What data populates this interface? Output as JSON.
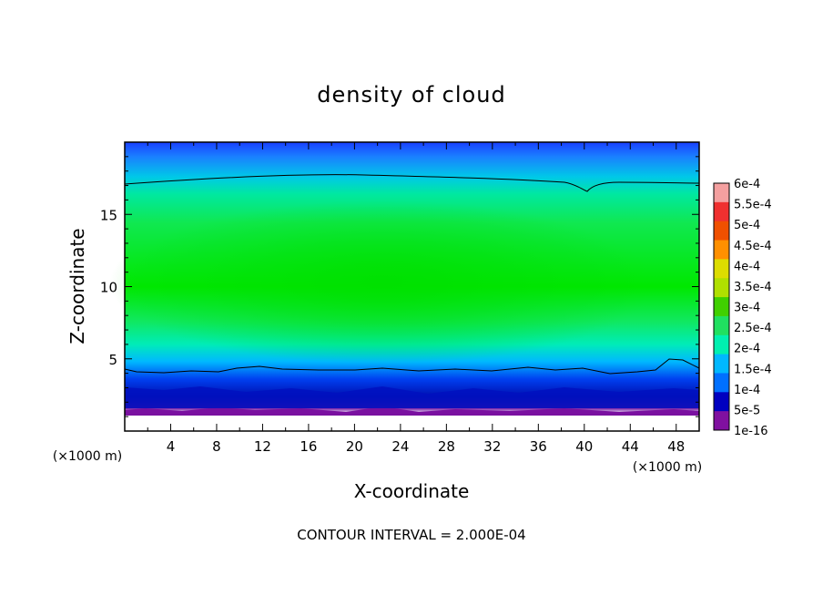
{
  "chart_data": {
    "type": "heatmap",
    "title": "density of cloud",
    "xlabel": "X-coordinate",
    "ylabel": "Z-coordinate",
    "x_unit": "(×1000 m)",
    "z_unit": "(×1000 m)",
    "x_ticks": [
      4,
      8,
      12,
      16,
      20,
      24,
      28,
      32,
      36,
      40,
      44,
      48
    ],
    "z_ticks": [
      5,
      10,
      15
    ],
    "xlim": [
      0,
      50
    ],
    "zlim": [
      0,
      20
    ],
    "colorbar": {
      "labels": [
        "6e-4",
        "5.5e-4",
        "5e-4",
        "4.5e-4",
        "4e-4",
        "3.5e-4",
        "3e-4",
        "2.5e-4",
        "2e-4",
        "1.5e-4",
        "1e-4",
        "5e-5",
        "1e-16"
      ],
      "colors": [
        "#f4a0a0",
        "#f03030",
        "#f05000",
        "#ff9000",
        "#dddd00",
        "#b0e000",
        "#40d000",
        "#20e060",
        "#00f0b0",
        "#00b8ff",
        "#0070ff",
        "#0000c0",
        "#8010a0"
      ]
    },
    "contour_levels": [
      0.0002
    ],
    "contour_interval": "CONTOUR INTERVAL = 2.000E-04"
  }
}
